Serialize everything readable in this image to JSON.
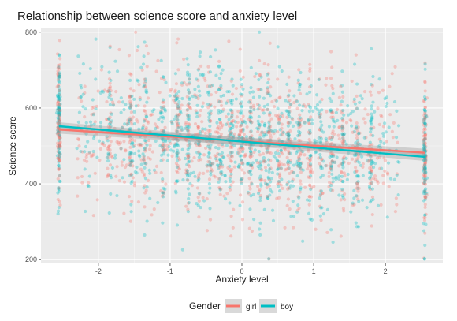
{
  "chart_data": {
    "type": "scatter",
    "title": "Relationship between science score and anxiety level",
    "xlabel": "Anxiety level",
    "ylabel": "Science score",
    "xlim": [
      -2.8,
      2.8
    ],
    "ylim": [
      190,
      810
    ],
    "x_ticks": [
      -2,
      -1,
      0,
      1,
      2
    ],
    "y_ticks": [
      200,
      400,
      600,
      800
    ],
    "grid": true,
    "legend": {
      "title": "Gender",
      "position": "bottom"
    },
    "series": [
      {
        "name": "girl",
        "color": "#F8766D",
        "trend": {
          "x": [
            -2.55,
            2.55
          ],
          "y": [
            543,
            482
          ]
        }
      },
      {
        "name": "boy",
        "color": "#00BFC4",
        "trend": {
          "x": [
            -2.55,
            2.55
          ],
          "y": [
            552,
            471
          ]
        }
      }
    ]
  }
}
